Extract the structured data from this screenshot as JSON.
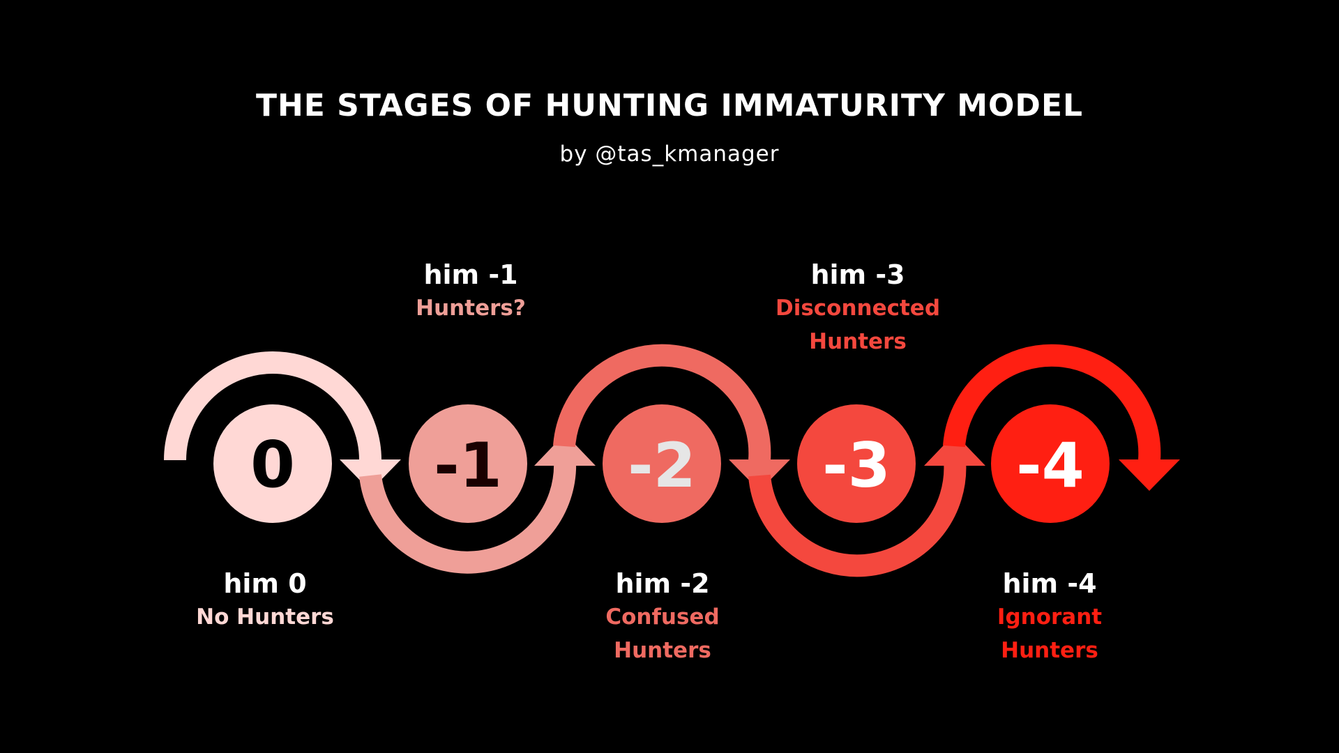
{
  "title": "THE STAGES OF HUNTING IMMATURITY MODEL",
  "subtitle": "by @tas_kmanager",
  "colors": {
    "background": "#000000",
    "stage0": "#ffd8d5",
    "stage1": "#ef9f98",
    "stage2": "#ef6a61",
    "stage3": "#f4483e",
    "stage4": "#ff1f12"
  },
  "stages": [
    {
      "number": "0",
      "level": "him 0",
      "name_lines": [
        "No Hunters"
      ]
    },
    {
      "number": "-1",
      "level": "him -1",
      "name_lines": [
        "Hunters?"
      ]
    },
    {
      "number": "-2",
      "level": "him -2",
      "name_lines": [
        "Confused",
        "Hunters"
      ]
    },
    {
      "number": "-3",
      "level": "him -3",
      "name_lines": [
        "Disconnected",
        "Hunters"
      ]
    },
    {
      "number": "-4",
      "level": "him -4",
      "name_lines": [
        "Ignorant",
        "Hunters"
      ]
    }
  ]
}
